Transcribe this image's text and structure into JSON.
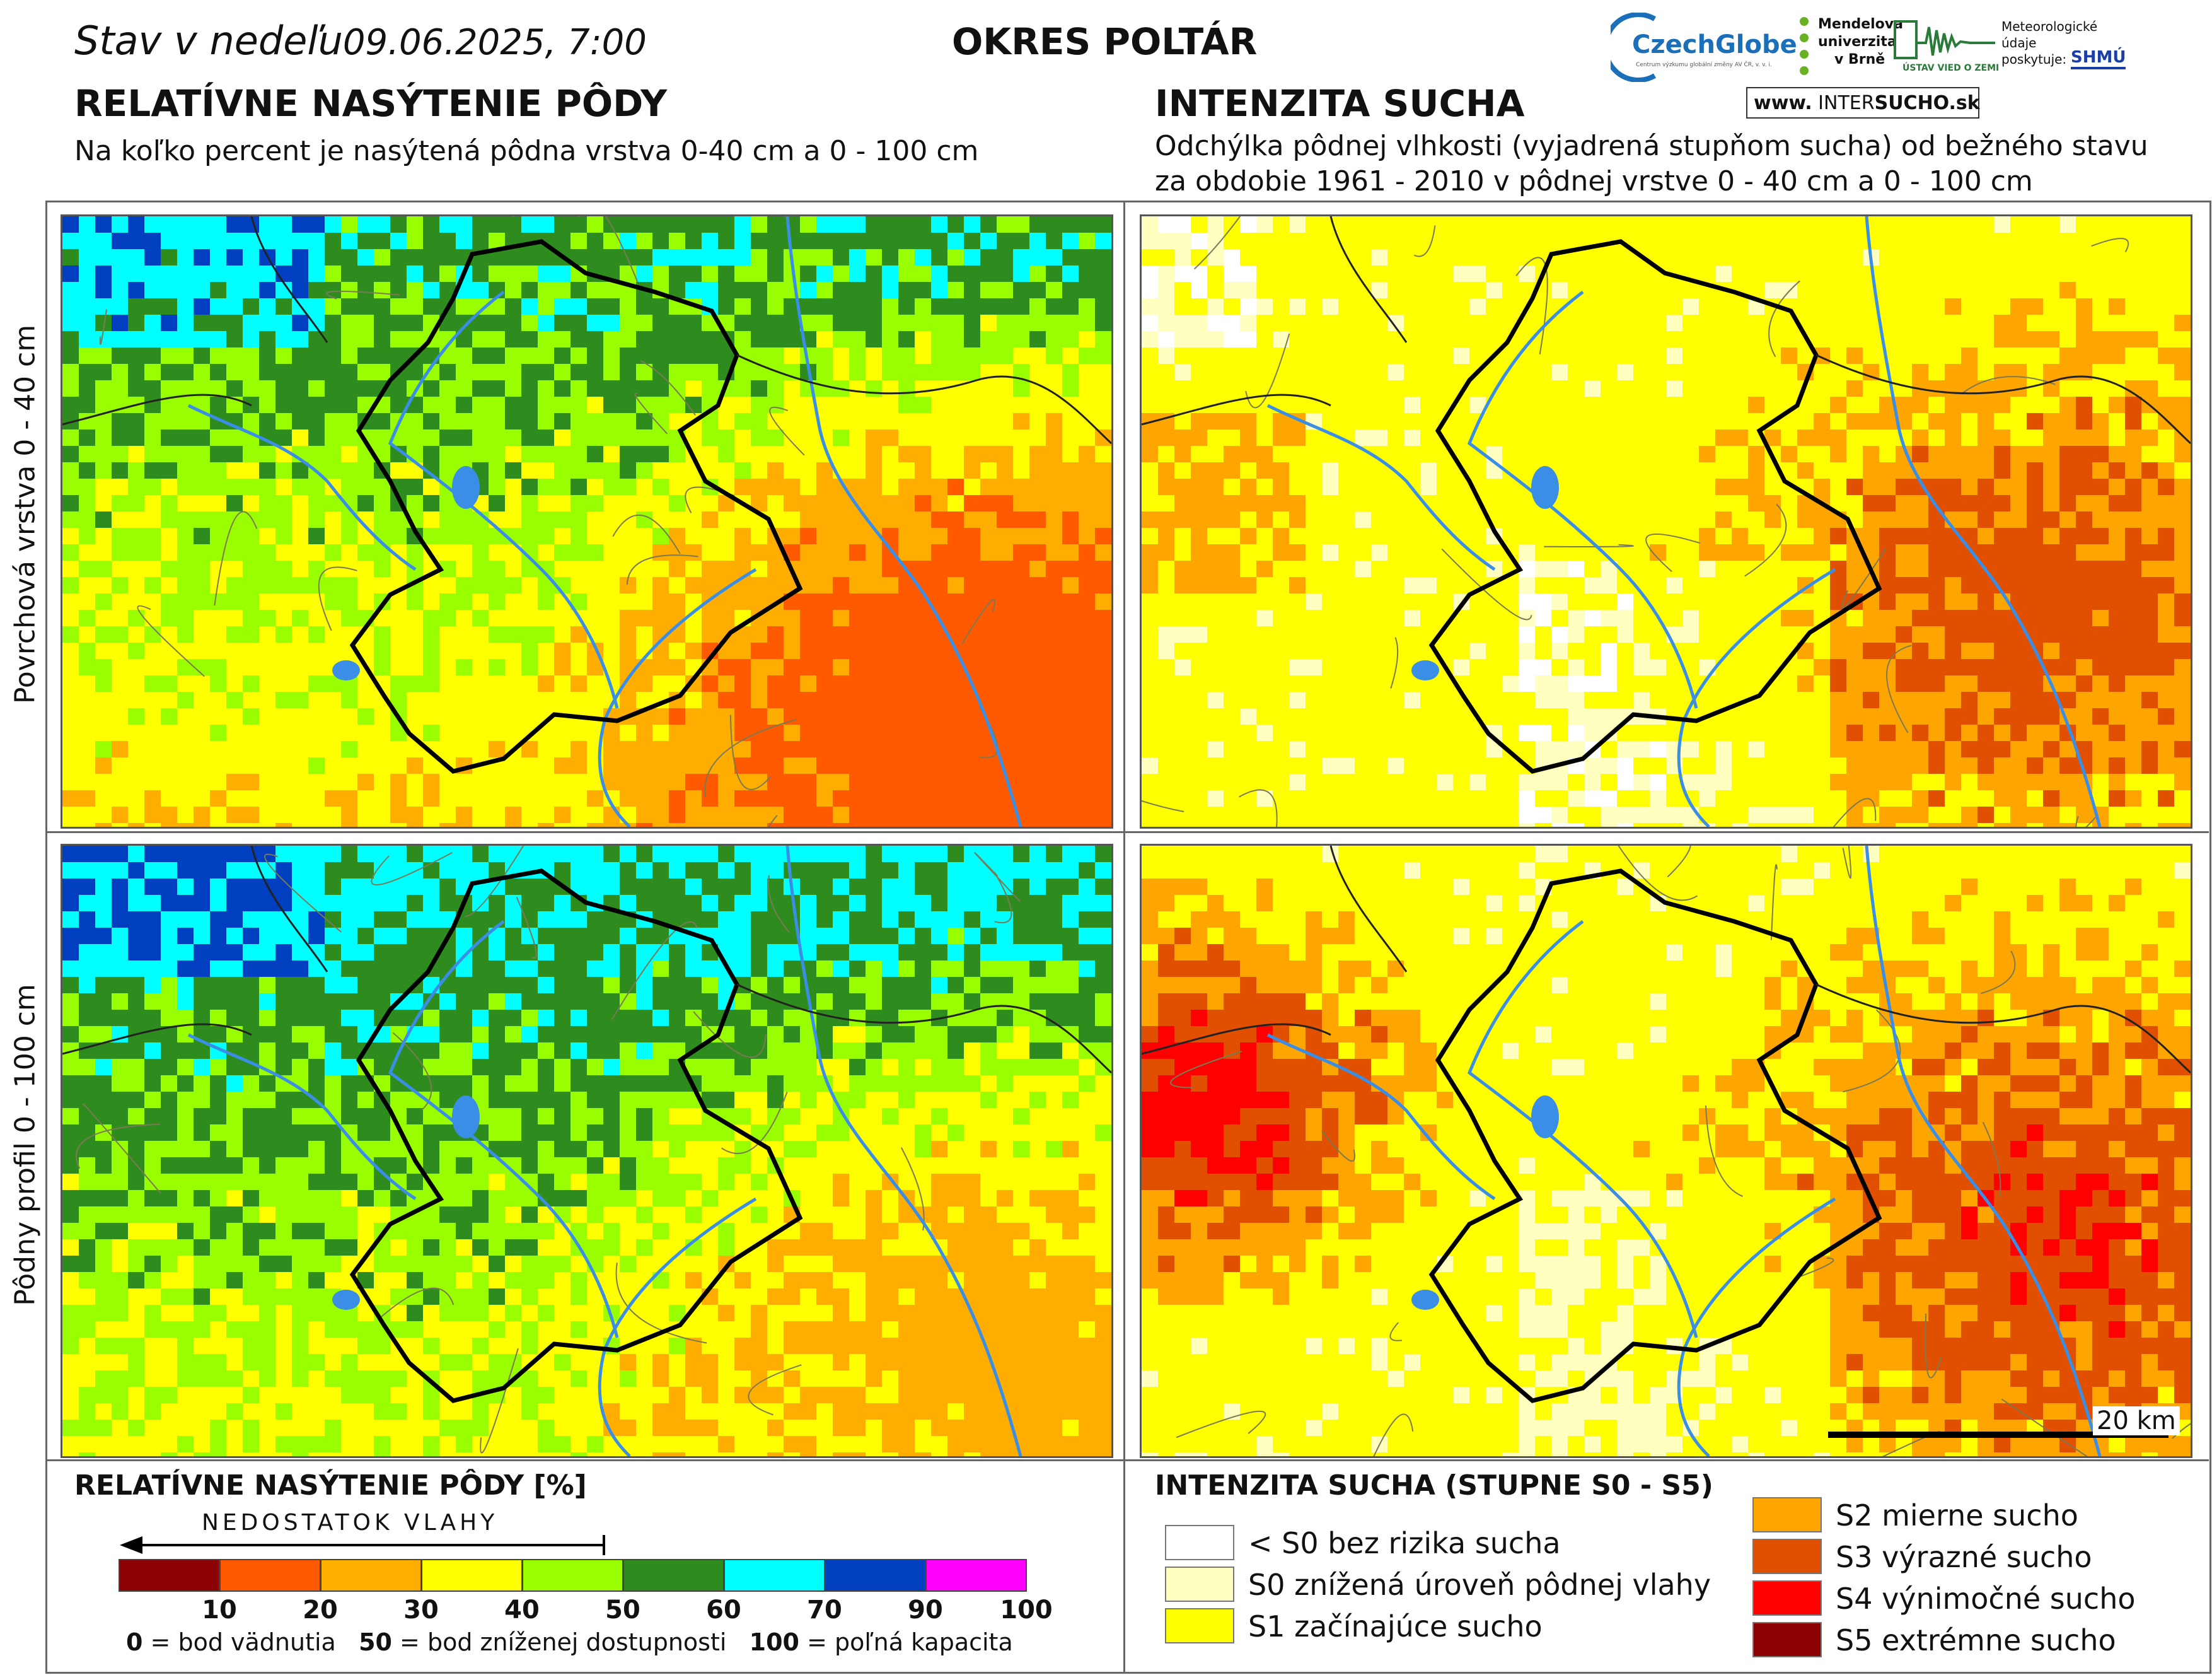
{
  "header": {
    "date_prefix": "Stav v nedeľu",
    "date_value": "09.06.2025, 7:00",
    "district": "OKRES POLTÁR"
  },
  "left_title": {
    "heading": "RELATÍVNE NASÝTENIE PÔDY",
    "subtitle": "Na koľko percent je nasýtená pôdna vrstva 0-40 cm a 0 - 100 cm"
  },
  "right_title": {
    "heading": "INTENZITA SUCHA",
    "subtitle_line1": "Odchýlka pôdnej vlhkosti (vyjadrená stupňom sucha) od bežného stavu",
    "subtitle_line2": "za obdobie 1961 - 2010 v pôdnej vrstve 0 - 40 cm a 0 - 100 cm"
  },
  "logos": {
    "czechglobe": "CzechGlobe",
    "czechglobe_sub": "Centrum výzkumu globální změny AV ČR, v. v. i.",
    "mendelu_line1": "Mendelova",
    "mendelu_line2": "univerzita",
    "mendelu_line3": "v Brně",
    "uvz": "ÚSTAV VIED O ZEMI",
    "meteo_line1": "Meteorologické",
    "meteo_line2": "údaje",
    "meteo_line3": "poskytuje:",
    "shmu": "SHMÚ",
    "intersucho_www": "www.",
    "intersucho_inter": "INTER",
    "intersucho_sucho": "SUCHO",
    "intersucho_sk": ".sk"
  },
  "row_labels": {
    "top": "Povrchová vrstva 0 - 40 cm",
    "bottom": "Pôdny profil 0 - 100 cm"
  },
  "scalebar": {
    "label": "20 km"
  },
  "legend_left": {
    "title": "RELATÍVNE NASÝTENIE PÔDY [%]",
    "arrow_label": "NEDOSTATOK VLAHY",
    "colors": [
      "#8b0000",
      "#ff5a00",
      "#ffae00",
      "#ffff00",
      "#99ff00",
      "#2e8b1e",
      "#00ffff",
      "#0040c0",
      "#ff00ff"
    ],
    "ticks": [
      "10",
      "20",
      "30",
      "40",
      "50",
      "60",
      "70",
      "90",
      "100"
    ],
    "note_0": "0",
    "note_0_text": " = bod vädnutia",
    "note_50": "50",
    "note_50_text": " = bod zníženej dostupnosti",
    "note_100": "100",
    "note_100_text": " = poľná kapacita"
  },
  "legend_right": {
    "title": "INTENZITA SUCHA (STUPNE S0 - S5)",
    "items": [
      {
        "label": "< S0 bez rizika sucha",
        "color": "#ffffff"
      },
      {
        "label": "S0 znížená úroveň pôdnej vlahy",
        "color": "#ffffc0"
      },
      {
        "label": "S1 začínajúce sucho",
        "color": "#ffff00"
      },
      {
        "label": "S2 mierne sucho",
        "color": "#ffa500"
      },
      {
        "label": "S3 výrazné sucho",
        "color": "#e05000"
      },
      {
        "label": "S4 výnimočné sucho",
        "color": "#ff0000"
      },
      {
        "label": "S5 extrémne sucho",
        "color": "#8b0000"
      }
    ]
  },
  "map_colors": {
    "sat_0_40": [
      "#ffff00",
      "#99ff00",
      "#2e8b1e",
      "#00ffff",
      "#0040c0",
      "#ffae00",
      "#ff5a00"
    ],
    "sat_0_100": [
      "#ffff00",
      "#99ff00",
      "#2e8b1e",
      "#00ffff",
      "#0040c0",
      "#ffae00"
    ],
    "drought_0_40": [
      "#ffff00",
      "#ffffc0",
      "#ffffff",
      "#ffa500",
      "#e05000"
    ],
    "drought_0_100": [
      "#ffff00",
      "#ffffc0",
      "#ffa500",
      "#e05000",
      "#ff0000"
    ],
    "river": "#3a8ee6",
    "border": "#000000"
  }
}
